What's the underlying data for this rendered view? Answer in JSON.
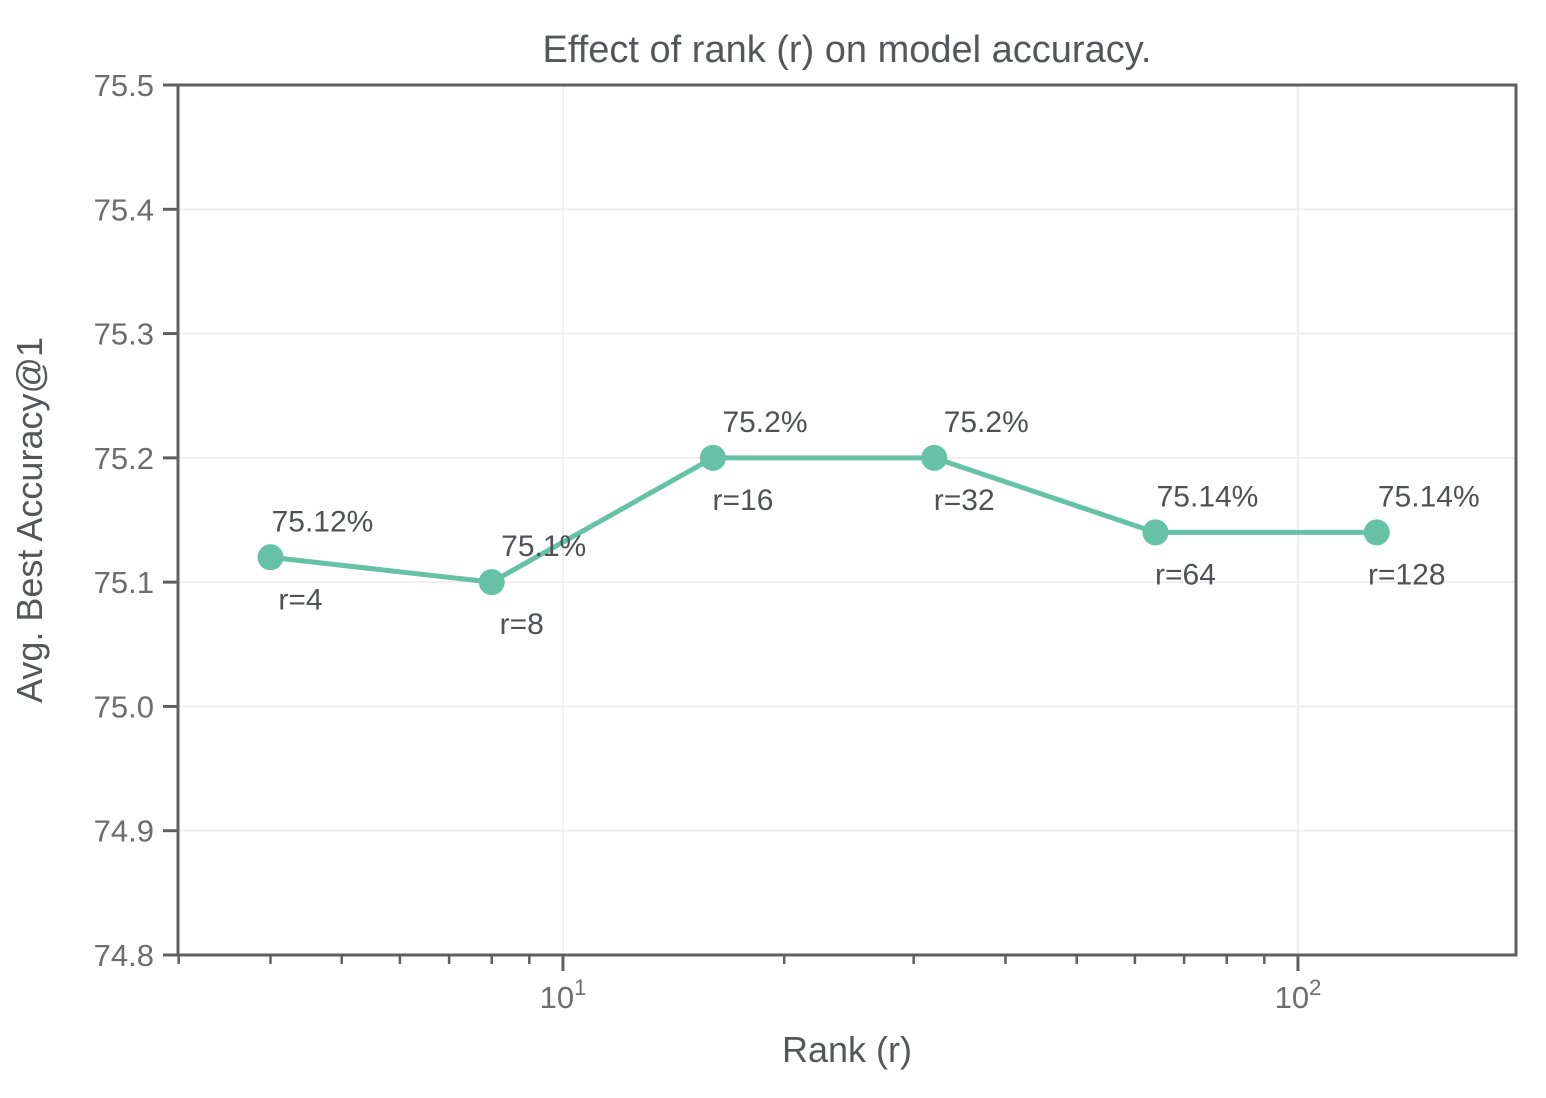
{
  "chart_data": {
    "type": "line",
    "title": "Effect of rank (r) on model accuracy.",
    "xlabel": "Rank (r)",
    "ylabel": "Avg. Best Accuracy@1",
    "x_scale": "log",
    "grid": true,
    "legend": false,
    "xlim": [
      2.994,
      198
    ],
    "ylim": [
      74.8,
      75.5
    ],
    "series": [
      {
        "x": [
          4,
          8,
          16,
          32,
          64,
          128
        ],
        "y": [
          75.12,
          75.1,
          75.2,
          75.2,
          75.14,
          75.14
        ],
        "point_labels": [
          "75.12%",
          "75.1%",
          "75.2%",
          "75.2%",
          "75.14%",
          "75.14%"
        ],
        "rank_labels": [
          "r=4",
          "r=8",
          "r=16",
          "r=32",
          "r=64",
          "r=128"
        ],
        "color": "#66c2a5"
      }
    ],
    "y_ticks": [
      {
        "v": 74.8,
        "label": "74.8"
      },
      {
        "v": 74.9,
        "label": "74.9"
      },
      {
        "v": 75.0,
        "label": "75.0"
      },
      {
        "v": 75.1,
        "label": "75.1"
      },
      {
        "v": 75.2,
        "label": "75.2"
      },
      {
        "v": 75.3,
        "label": "75.3"
      },
      {
        "v": 75.4,
        "label": "75.4"
      },
      {
        "v": 75.5,
        "label": "75.5"
      }
    ],
    "x_major_ticks": [
      {
        "v": 10,
        "base": "10",
        "exp": "1"
      },
      {
        "v": 100,
        "base": "10",
        "exp": "2"
      }
    ],
    "x_minor_ticks": [
      3,
      4,
      5,
      6,
      7,
      8,
      9,
      20,
      30,
      40,
      50,
      60,
      70,
      80,
      90
    ]
  },
  "style": {
    "line_color": "#66c2a5",
    "spine_color": "#5f5f5f",
    "grid_color": "#efefef",
    "tick_color": "#5f5f5f",
    "tick_label_color": "#6d6d6d",
    "text_color": "#54565a",
    "background": "#ffffff"
  }
}
